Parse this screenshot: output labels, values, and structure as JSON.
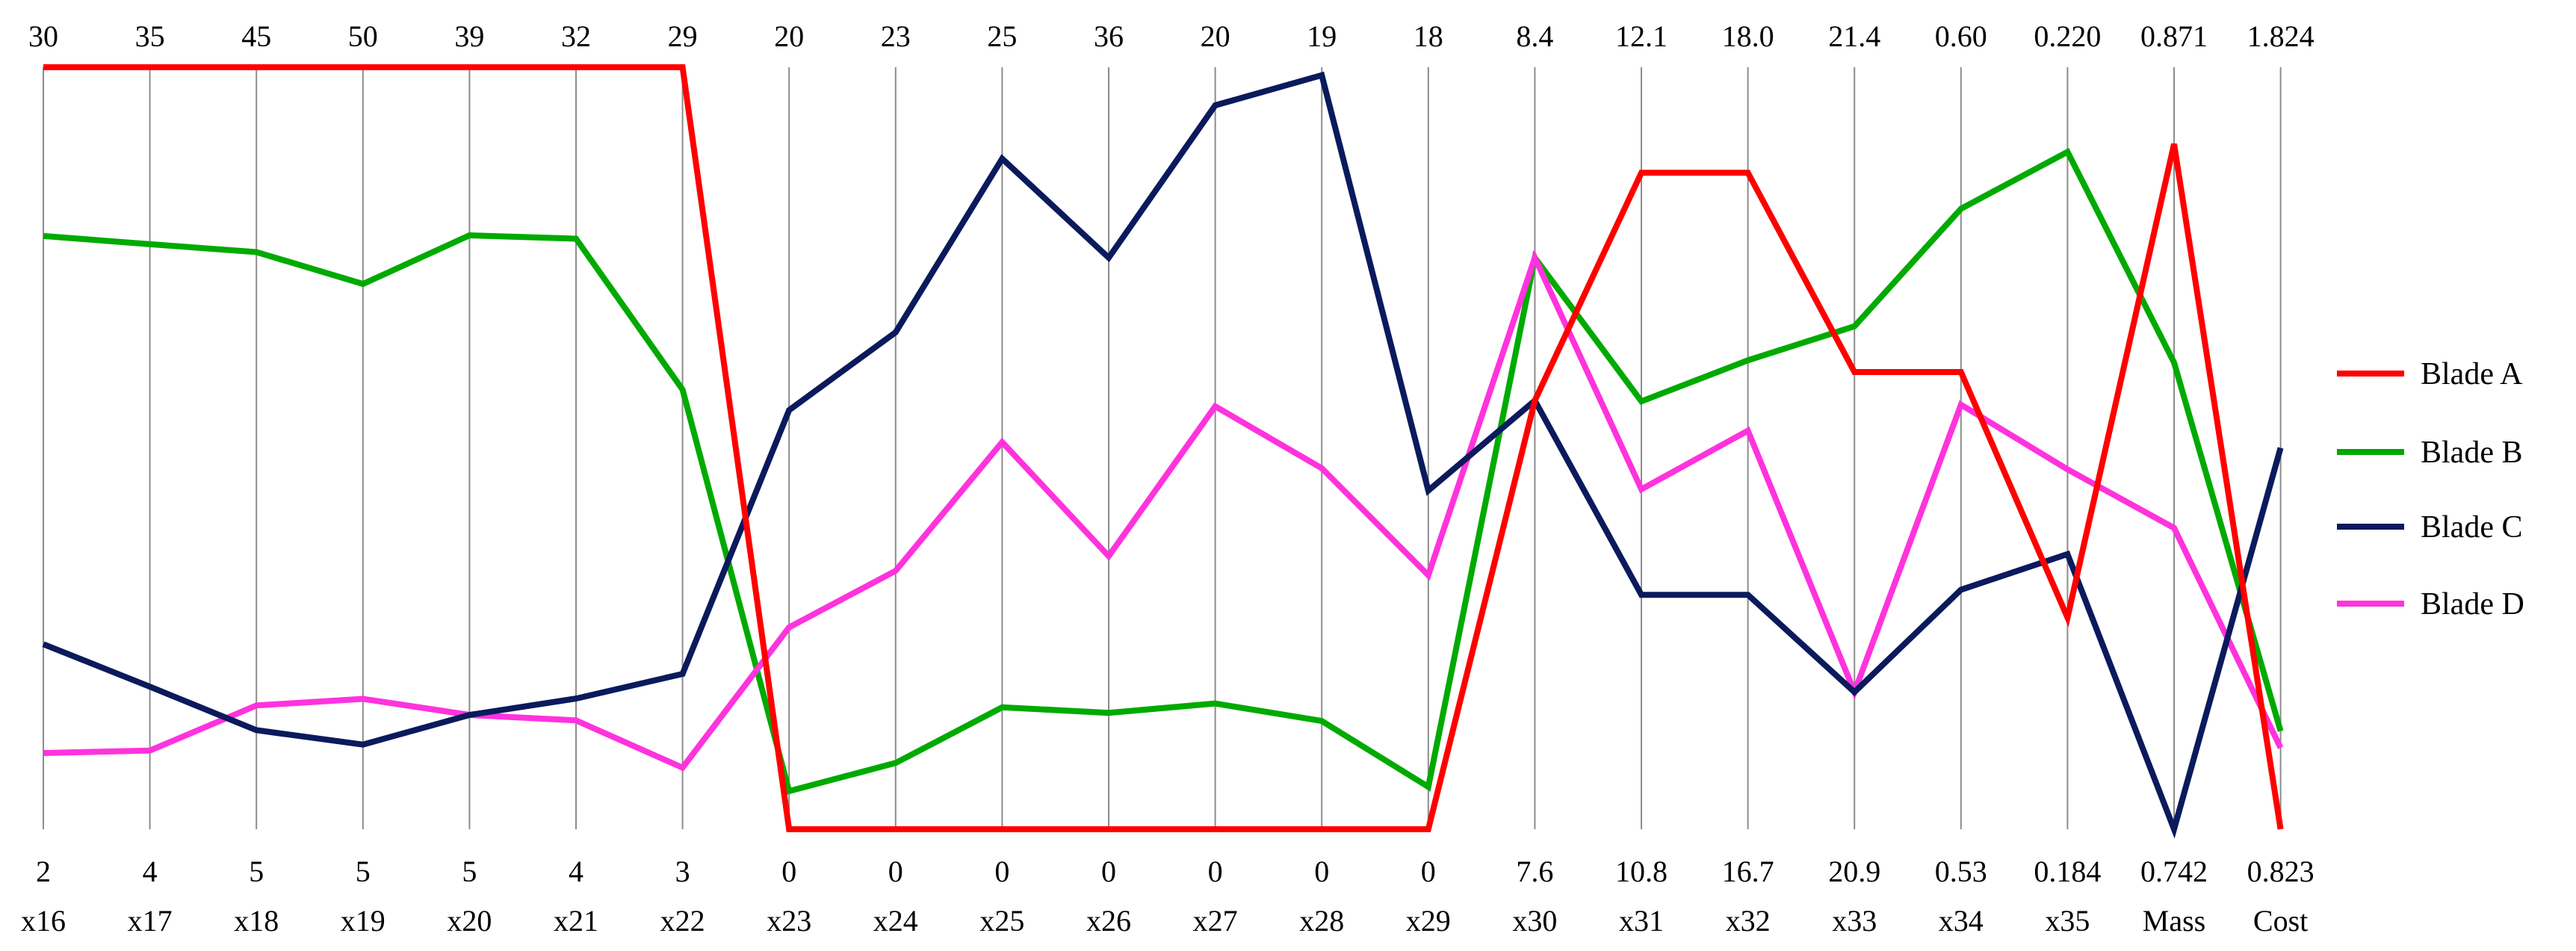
{
  "chart_data": {
    "type": "line",
    "title": "",
    "xlabel": "",
    "ylabel": "",
    "grid": true,
    "legend_position": "right",
    "axes": [
      {
        "name": "x16",
        "max": "30",
        "min": "2"
      },
      {
        "name": "x17",
        "max": "35",
        "min": "4"
      },
      {
        "name": "x18",
        "max": "45",
        "min": "5"
      },
      {
        "name": "x19",
        "max": "50",
        "min": "5"
      },
      {
        "name": "x20",
        "max": "39",
        "min": "5"
      },
      {
        "name": "x21",
        "max": "32",
        "min": "4"
      },
      {
        "name": "x22",
        "max": "29",
        "min": "3"
      },
      {
        "name": "x23",
        "max": "20",
        "min": "0"
      },
      {
        "name": "x24",
        "max": "23",
        "min": "0"
      },
      {
        "name": "x25",
        "max": "25",
        "min": "0"
      },
      {
        "name": "x26",
        "max": "36",
        "min": "0"
      },
      {
        "name": "x27",
        "max": "20",
        "min": "0"
      },
      {
        "name": "x28",
        "max": "19",
        "min": "0"
      },
      {
        "name": "x29",
        "max": "18",
        "min": "0"
      },
      {
        "name": "x30",
        "max": "8.4",
        "min": "7.6"
      },
      {
        "name": "x31",
        "max": "12.1",
        "min": "10.8"
      },
      {
        "name": "x32",
        "max": "18.0",
        "min": "16.7"
      },
      {
        "name": "x33",
        "max": "21.4",
        "min": "20.9"
      },
      {
        "name": "x34",
        "max": "0.60",
        "min": "0.53"
      },
      {
        "name": "x35",
        "max": "0.220",
        "min": "0.184"
      },
      {
        "name": "Mass",
        "max": "0.871",
        "min": "0.742"
      },
      {
        "name": "Cost",
        "max": "1.824",
        "min": "0.823"
      }
    ],
    "series": [
      {
        "name": "Blade A",
        "color": "#ff0000",
        "values": [
          30,
          35,
          45,
          50,
          39,
          32,
          29,
          0,
          0,
          0,
          0,
          0,
          0,
          0,
          8.05,
          11.92,
          17.82,
          21.2,
          0.572,
          0.194,
          0.858,
          0.823
        ]
      },
      {
        "name": "Blade B",
        "color": "#00aa00",
        "values": [
          23.8,
          27.8,
          35.3,
          37.2,
          31.5,
          25.7,
          18.0,
          1.0,
          2.0,
          4.0,
          5.5,
          3.3,
          2.7,
          1.0,
          8.2,
          11.53,
          17.5,
          21.23,
          0.587,
          0.216,
          0.821,
          0.952
        ]
      },
      {
        "name": "Blade C",
        "color": "#0a1a5c",
        "values": [
          8.8,
          9.8,
          10.2,
          10.0,
          10.1,
          8.8,
          8.3,
          11.0,
          15.0,
          22.0,
          27.0,
          19.0,
          18.8,
          8.0,
          8.05,
          11.2,
          17.1,
          20.99,
          0.552,
          0.197,
          0.742,
          1.324
        ]
      },
      {
        "name": "Blade D",
        "color": "#ff33dd",
        "values": [
          4.8,
          7.2,
          11.5,
          12.7,
          10.1,
          8.0,
          5.1,
          5.3,
          7.8,
          12.7,
          12.9,
          11.1,
          9.0,
          6.0,
          8.2,
          11.38,
          17.38,
          20.99,
          0.569,
          0.201,
          0.793,
          0.93
        ]
      }
    ]
  }
}
